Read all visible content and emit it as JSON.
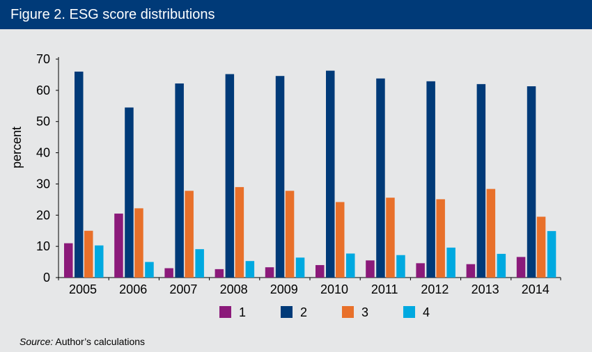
{
  "header": {
    "title": "Figure 2. ESG score distributions"
  },
  "source": {
    "label": "Source:",
    "text": "Author’s calculations"
  },
  "chart_data": {
    "type": "bar",
    "categories": [
      "2005",
      "2006",
      "2007",
      "2008",
      "2009",
      "2010",
      "2011",
      "2012",
      "2013",
      "2014"
    ],
    "series": [
      {
        "name": "1",
        "color": "#8b1a7a",
        "values": [
          11,
          20.5,
          3,
          2.7,
          3.3,
          4,
          5.5,
          4.6,
          4.3,
          6.6
        ]
      },
      {
        "name": "2",
        "color": "#003a78",
        "values": [
          66,
          54.5,
          62.2,
          65.2,
          64.6,
          66.3,
          63.8,
          62.9,
          62,
          61.3
        ]
      },
      {
        "name": "3",
        "color": "#e8702a",
        "values": [
          15,
          22.2,
          27.8,
          29,
          27.8,
          24.2,
          25.6,
          25.1,
          28.4,
          19.5
        ]
      },
      {
        "name": "4",
        "color": "#00a9e0",
        "values": [
          10.3,
          5,
          9.1,
          5.3,
          6.4,
          7.7,
          7.2,
          9.6,
          7.6,
          14.9
        ]
      }
    ],
    "ylabel": "percent",
    "xlabel": "",
    "ylim": [
      0,
      70
    ],
    "yticks": [
      "0",
      "10",
      "20",
      "30",
      "40",
      "50",
      "60",
      "70"
    ],
    "grid": false,
    "legend": "bottom"
  }
}
